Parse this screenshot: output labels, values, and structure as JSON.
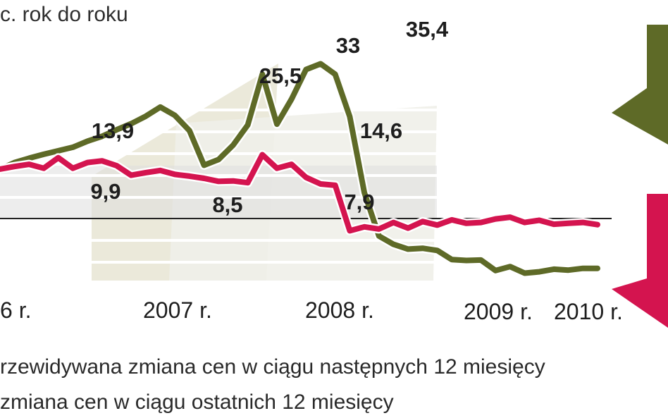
{
  "chart_data": {
    "type": "line",
    "ylabel": "c. rok do roku",
    "x_ticks": [
      "6 r.",
      "2007 r.",
      "2008 r.",
      "2009 r.",
      "2010 r."
    ],
    "annotations": [
      "13,9",
      "9,9",
      "25,5",
      "8,5",
      "33",
      "7,9",
      "35,4",
      "14,6"
    ],
    "legend": [
      {
        "label": "rzewidywana zmiana cen w ciągu następnych 12 miesięcy",
        "color": "#5e6a27"
      },
      {
        "label": "zmiana cen w ciągu ostatnich 12 miesięcy",
        "color": "#d4144f"
      }
    ],
    "x": [
      "2006-09",
      "2006-10",
      "2006-11",
      "2006-12",
      "2007-01",
      "2007-02",
      "2007-03",
      "2007-04",
      "2007-05",
      "2007-06",
      "2007-07",
      "2007-08",
      "2007-09",
      "2007-10",
      "2007-11",
      "2007-12",
      "2008-01",
      "2008-02",
      "2008-03",
      "2008-04",
      "2008-05",
      "2008-06",
      "2008-07",
      "2008-08",
      "2008-09",
      "2008-10",
      "2008-11",
      "2008-12",
      "2009-01",
      "2009-02",
      "2009-03",
      "2009-04",
      "2009-05",
      "2009-06",
      "2009-07",
      "2009-08",
      "2009-09",
      "2009-10",
      "2009-11",
      "2009-12",
      "2010-01",
      "2010-02"
    ],
    "series": [
      {
        "color": "#5e6a27",
        "values": [
          11.3,
          12.8,
          13.8,
          14.7,
          15.5,
          16.3,
          17.7,
          18.8,
          20.3,
          21.7,
          23.4,
          25.5,
          23.6,
          20.1,
          12.2,
          13.5,
          16.8,
          21.4,
          33,
          21.6,
          27.3,
          34.1,
          35.4,
          33,
          23.3,
          5.9,
          -4,
          -5.9,
          -7,
          -6.8,
          -7.3,
          -9.4,
          -9.6,
          -9.5,
          -11.9,
          -11,
          -12.5,
          -12.2,
          -11.6,
          -11.8,
          -11.4,
          -11.4
        ]
      },
      {
        "color": "#d4144f",
        "values": [
          11.3,
          11.9,
          12.4,
          11.5,
          13.9,
          11.5,
          12.8,
          13.2,
          12.1,
          9.9,
          10.5,
          11,
          10.1,
          9.7,
          9.2,
          8.5,
          8.6,
          8.2,
          14.6,
          11.5,
          12.4,
          9.4,
          7.9,
          7.6,
          -2.8,
          -1.9,
          -2.4,
          -0.9,
          -2.2,
          -0.7,
          -1.5,
          -0.3,
          -1.1,
          -0.9,
          -0.1,
          0.3,
          -0.9,
          -0.4,
          -1.3,
          -1.1,
          -0.9,
          -1.4
        ]
      }
    ]
  }
}
